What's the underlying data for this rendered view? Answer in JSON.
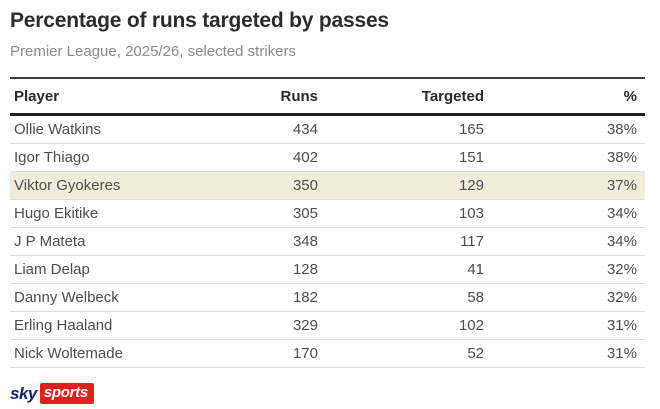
{
  "title": "Percentage of runs targeted by passes",
  "subtitle": "Premier League, 2025/26, selected strikers",
  "table": {
    "columns": [
      "Player",
      "Runs",
      "Targeted",
      "%"
    ],
    "rows": [
      {
        "player": "Ollie Watkins",
        "runs": "434",
        "targeted": "165",
        "pct": "38%",
        "highlight": false
      },
      {
        "player": "Igor Thiago",
        "runs": "402",
        "targeted": "151",
        "pct": "38%",
        "highlight": false
      },
      {
        "player": "Viktor Gyokeres",
        "runs": "350",
        "targeted": "129",
        "pct": "37%",
        "highlight": true
      },
      {
        "player": "Hugo Ekitike",
        "runs": "305",
        "targeted": "103",
        "pct": "34%",
        "highlight": false
      },
      {
        "player": "J P Mateta",
        "runs": "348",
        "targeted": "117",
        "pct": "34%",
        "highlight": false
      },
      {
        "player": "Liam Delap",
        "runs": "128",
        "targeted": "41",
        "pct": "32%",
        "highlight": false
      },
      {
        "player": "Danny Welbeck",
        "runs": "182",
        "targeted": "58",
        "pct": "32%",
        "highlight": false
      },
      {
        "player": "Erling Haaland",
        "runs": "329",
        "targeted": "102",
        "pct": "31%",
        "highlight": false
      },
      {
        "player": "Nick Woltemade",
        "runs": "170",
        "targeted": "52",
        "pct": "31%",
        "highlight": false
      }
    ]
  },
  "chart_data": {
    "type": "table",
    "title": "Percentage of runs targeted by passes",
    "subtitle": "Premier League, 2025/26, selected strikers",
    "columns": [
      "Player",
      "Runs",
      "Targeted",
      "%"
    ],
    "rows": [
      [
        "Ollie Watkins",
        434,
        165,
        "38%"
      ],
      [
        "Igor Thiago",
        402,
        151,
        "38%"
      ],
      [
        "Viktor Gyokeres",
        350,
        129,
        "37%"
      ],
      [
        "Hugo Ekitike",
        305,
        103,
        "34%"
      ],
      [
        "J P Mateta",
        348,
        117,
        "34%"
      ],
      [
        "Liam Delap",
        128,
        41,
        "32%"
      ],
      [
        "Danny Welbeck",
        182,
        58,
        "32%"
      ],
      [
        "Erling Haaland",
        329,
        102,
        "31%"
      ],
      [
        "Nick Woltemade",
        170,
        52,
        "31%"
      ]
    ],
    "highlighted_row": "Viktor Gyokeres",
    "branding": "sky sports"
  },
  "logo": {
    "sky_label": "sky",
    "sports_label": "sports"
  },
  "colors": {
    "title_text": "#2c2c2c",
    "subtitle_text": "#8a8a8a",
    "body_text": "#4d4d4d",
    "divider": "#dddddd",
    "highlight_row": "#f3ecdb",
    "logo_navy": "#151f6d",
    "logo_red": "#e0211f"
  }
}
